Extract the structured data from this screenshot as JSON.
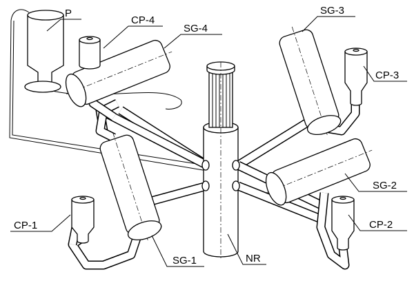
{
  "labels": [
    {
      "text": "P"
    },
    {
      "text": "CP-4"
    },
    {
      "text": "SG-4"
    },
    {
      "text": "SG-3"
    },
    {
      "text": "CP-3"
    },
    {
      "text": "SG-2"
    },
    {
      "text": "CP-2"
    },
    {
      "text": "NR"
    },
    {
      "text": "SG-1"
    },
    {
      "text": "CP-1"
    }
  ]
}
